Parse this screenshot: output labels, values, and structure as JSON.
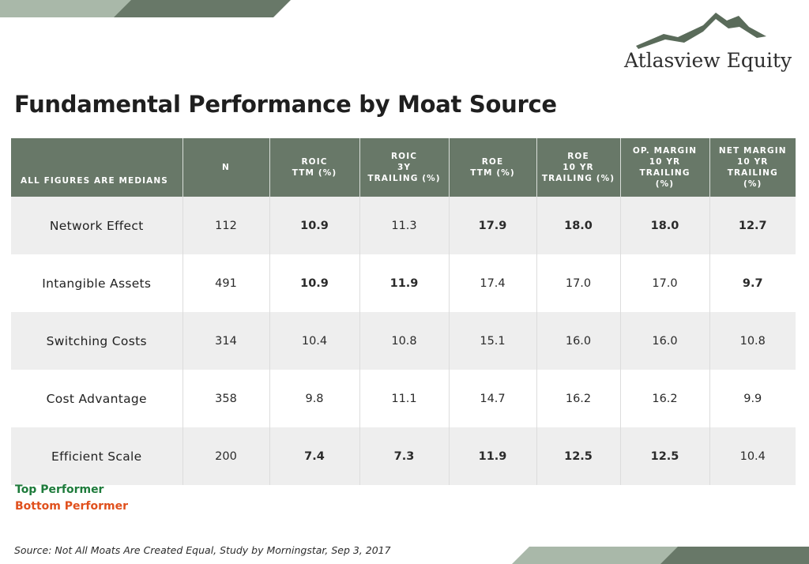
{
  "brand": {
    "name": "Atlasview Equity"
  },
  "title": "Fundamental Performance by Moat Source",
  "colors": {
    "header_bg": "#687868",
    "top": "#1e7b3b",
    "bottom": "#e0501d",
    "band_dark": "#687868",
    "band_light": "#a9b8a9"
  },
  "table": {
    "headers": [
      [
        "ALL FIGURES ARE MEDIANS"
      ],
      [
        "N"
      ],
      [
        "ROIC",
        "TTM (%)"
      ],
      [
        "ROIC",
        "3Y",
        "TRAILING (%)"
      ],
      [
        "ROE",
        "TTM (%)"
      ],
      [
        "ROE",
        "10 YR",
        "TRAILING (%)"
      ],
      [
        "OP. MARGIN",
        "10 YR TRAILING",
        "(%)"
      ],
      [
        "NET MARGIN",
        "10 YR TRAILING",
        "(%)"
      ]
    ],
    "rows": [
      {
        "label": "Network Effect",
        "cells": [
          {
            "v": "112",
            "s": ""
          },
          {
            "v": "10.9",
            "s": "top"
          },
          {
            "v": "11.3",
            "s": ""
          },
          {
            "v": "17.9",
            "s": "top"
          },
          {
            "v": "18.0",
            "s": "top"
          },
          {
            "v": "18.0",
            "s": "top"
          },
          {
            "v": "12.7",
            "s": "top"
          }
        ]
      },
      {
        "label": "Intangible Assets",
        "cells": [
          {
            "v": "491",
            "s": ""
          },
          {
            "v": "10.9",
            "s": "top"
          },
          {
            "v": "11.9",
            "s": "top"
          },
          {
            "v": "17.4",
            "s": ""
          },
          {
            "v": "17.0",
            "s": ""
          },
          {
            "v": "17.0",
            "s": ""
          },
          {
            "v": "9.7",
            "s": "bottom"
          }
        ]
      },
      {
        "label": "Switching Costs",
        "cells": [
          {
            "v": "314",
            "s": ""
          },
          {
            "v": "10.4",
            "s": ""
          },
          {
            "v": "10.8",
            "s": ""
          },
          {
            "v": "15.1",
            "s": ""
          },
          {
            "v": "16.0",
            "s": ""
          },
          {
            "v": "16.0",
            "s": ""
          },
          {
            "v": "10.8",
            "s": ""
          }
        ]
      },
      {
        "label": "Cost Advantage",
        "cells": [
          {
            "v": "358",
            "s": ""
          },
          {
            "v": "9.8",
            "s": ""
          },
          {
            "v": "11.1",
            "s": ""
          },
          {
            "v": "14.7",
            "s": ""
          },
          {
            "v": "16.2",
            "s": ""
          },
          {
            "v": "16.2",
            "s": ""
          },
          {
            "v": "9.9",
            "s": ""
          }
        ]
      },
      {
        "label": "Efficient Scale",
        "cells": [
          {
            "v": "200",
            "s": ""
          },
          {
            "v": "7.4",
            "s": "bottom"
          },
          {
            "v": "7.3",
            "s": "bottom"
          },
          {
            "v": "11.9",
            "s": "bottom"
          },
          {
            "v": "12.5",
            "s": "bottom"
          },
          {
            "v": "12.5",
            "s": "bottom"
          },
          {
            "v": "10.4",
            "s": ""
          }
        ]
      }
    ]
  },
  "chart_data": {
    "type": "table",
    "title": "Fundamental Performance by Moat Source",
    "columns": [
      "N",
      "ROIC TTM (%)",
      "ROIC 3Y TRAILING (%)",
      "ROE TTM (%)",
      "ROE 10 YR TRAILING (%)",
      "OP. MARGIN 10 YR TRAILING (%)",
      "NET MARGIN 10 YR TRAILING (%)"
    ],
    "rows": [
      "Network Effect",
      "Intangible Assets",
      "Switching Costs",
      "Cost Advantage",
      "Efficient Scale"
    ],
    "values": [
      [
        112,
        10.9,
        11.3,
        17.9,
        18.0,
        18.0,
        12.7
      ],
      [
        491,
        10.9,
        11.9,
        17.4,
        17.0,
        17.0,
        9.7
      ],
      [
        314,
        10.4,
        10.8,
        15.1,
        16.0,
        16.0,
        10.8
      ],
      [
        358,
        9.8,
        11.1,
        14.7,
        16.2,
        16.2,
        9.9
      ],
      [
        200,
        7.4,
        7.3,
        11.9,
        12.5,
        12.5,
        10.4
      ]
    ]
  },
  "legend": {
    "top": "Top Performer",
    "bottom": "Bottom Performer"
  },
  "source": "Source: Not All Moats Are Created Equal, Study by Morningstar, Sep 3, 2017"
}
